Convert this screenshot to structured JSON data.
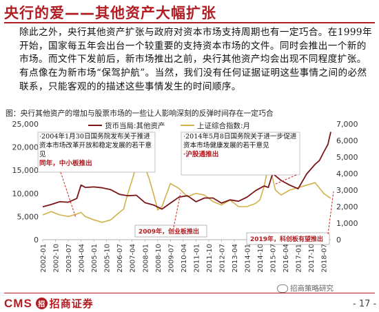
{
  "slide": {
    "title": "央行的爱——其他资产大幅扩张",
    "paragraph": "除此之外，央行其他资产扩张与政府对资本市场支持周期也有一定巧合。在1999年开始，国家每五年会出台一个较重要的支持资本市场的文件。同时会推出一个新的市场。而文件下发前后，新市场推出之前，央行其他资产均会出现不同程度扩张。有点像在为新市场“保驾护航”。当然，我们没有任何证据证明这些事情之间的必然联系，只能客观的的描述这些事情发生的时间顺序。",
    "caption": "图：央行其他资产的增加与股票市场的一些让人影响深刻的反弹时间存在一定巧合",
    "logo_text": "CMS",
    "logo_badge": "招",
    "logo_cn": "招商证券",
    "wechat_label": "招商策略研究",
    "page_number": "- 17 -",
    "colors": {
      "accent": "#b01e23",
      "series1": "#7b1416",
      "series2": "#d2b04a"
    }
  },
  "chart_data": {
    "type": "line",
    "x_ticks": [
      "2002-01",
      "2002-10",
      "2003-07",
      "2004-04",
      "2005-01",
      "2005-10",
      "2006-07",
      "2007-04",
      "2008-01",
      "2008-10",
      "2009-07",
      "2010-04",
      "2011-01",
      "2011-10",
      "2012-07",
      "2013-04",
      "2014-01",
      "2014-10",
      "2015-07",
      "2016-04",
      "2017-01",
      "2017-10",
      "2018-07"
    ],
    "ylim_left": [
      0,
      25000
    ],
    "left_ticks": [
      "0",
      "5,000",
      "10,000",
      "15,000",
      "20,000",
      "25,000"
    ],
    "ylim_right": [
      0,
      7000
    ],
    "right_ticks": [
      "0",
      "1,000",
      "2,000",
      "3,000",
      "4,000",
      "5,000",
      "6,000",
      "7,000"
    ],
    "grid": false,
    "series": [
      {
        "name": "货币当局:其他资产",
        "axis": "left",
        "x": [
          "2002-01",
          "2002-07",
          "2003-01",
          "2003-07",
          "2004-01",
          "2004-04",
          "2004-07",
          "2005-01",
          "2005-07",
          "2006-01",
          "2006-07",
          "2007-01",
          "2007-07",
          "2008-01",
          "2008-07",
          "2009-01",
          "2009-07",
          "2010-01",
          "2010-07",
          "2011-01",
          "2011-07",
          "2012-01",
          "2012-07",
          "2013-01",
          "2013-07",
          "2014-01",
          "2014-07",
          "2015-01",
          "2015-04",
          "2015-07",
          "2016-01",
          "2016-07",
          "2017-01",
          "2017-07",
          "2018-01",
          "2018-04",
          "2018-07",
          "2018-10",
          "2018-12"
        ],
        "values": [
          7100,
          7600,
          8200,
          8100,
          8900,
          11800,
          11300,
          11400,
          11200,
          10800,
          9800,
          9500,
          9600,
          8000,
          7500,
          6600,
          7900,
          9200,
          9500,
          8200,
          9000,
          9000,
          7900,
          8600,
          8300,
          9200,
          10600,
          11600,
          11300,
          14300,
          12800,
          11800,
          11000,
          14200,
          16300,
          17100,
          18900,
          20600,
          23300
        ]
      },
      {
        "name": "上证综合指数:月",
        "axis": "right",
        "x": [
          "2002-01",
          "2002-07",
          "2003-01",
          "2003-07",
          "2004-01",
          "2004-04",
          "2004-07",
          "2005-01",
          "2005-07",
          "2006-01",
          "2006-07",
          "2006-10",
          "2007-01",
          "2007-04",
          "2007-07",
          "2007-10",
          "2008-01",
          "2008-04",
          "2008-07",
          "2008-10",
          "2009-01",
          "2009-07",
          "2010-01",
          "2010-07",
          "2011-01",
          "2011-07",
          "2012-01",
          "2012-07",
          "2013-01",
          "2013-07",
          "2014-01",
          "2014-07",
          "2014-10",
          "2015-01",
          "2015-04",
          "2015-06",
          "2015-07",
          "2015-09",
          "2016-01",
          "2016-07",
          "2017-01",
          "2017-07",
          "2018-01",
          "2018-07",
          "2018-12"
        ],
        "values": [
          1500,
          1700,
          1500,
          1400,
          1550,
          1650,
          1400,
          1200,
          1050,
          1200,
          1650,
          1850,
          2800,
          3600,
          4500,
          5900,
          4400,
          3700,
          2800,
          1800,
          2000,
          3400,
          3100,
          2600,
          2800,
          2700,
          2300,
          2100,
          2400,
          2000,
          2000,
          2200,
          2400,
          3200,
          4500,
          4600,
          3700,
          3000,
          2700,
          3000,
          3150,
          3300,
          3450,
          2800,
          2500
        ]
      }
    ],
    "annotations": [
      {
        "text": "·2004年1月30日国务院发布关于推进资本市场改革开放和稳定发展的若干意见",
        "sub": "同年，中小板推出"
      },
      {
        "text": "·2014年5月8日国务院关于进一步促进资本市场健康发展的若干意见",
        "sub": "·沪股通推出"
      },
      {
        "text": "2009年，创业板推出"
      },
      {
        "text": "2019年，科创板有望推出"
      }
    ]
  }
}
